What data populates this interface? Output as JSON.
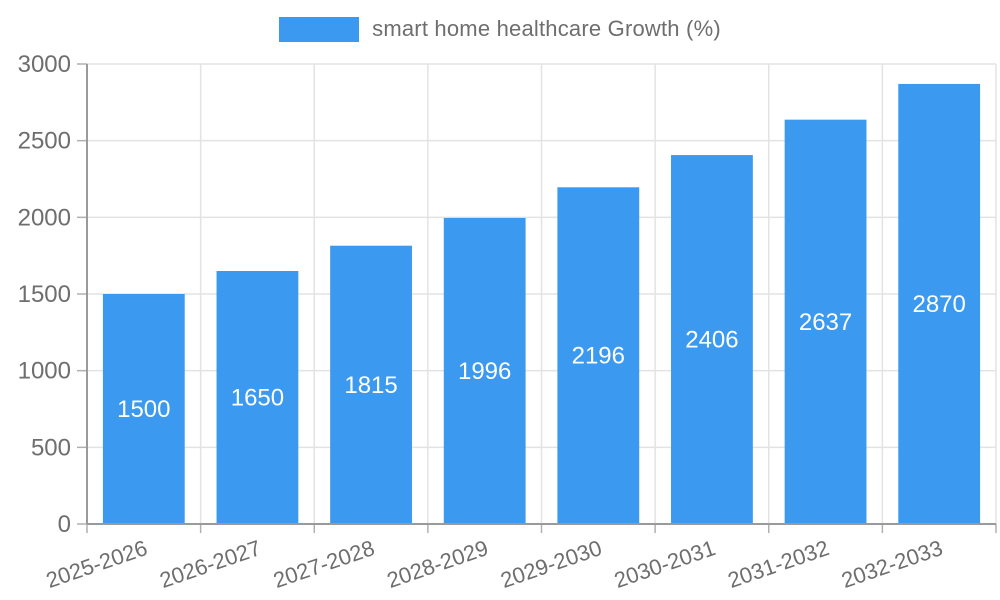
{
  "chart_data": {
    "type": "bar",
    "title": "smart home healthcare Growth (%)",
    "legend": {
      "label": "smart home healthcare Growth (%)",
      "position": "top-center"
    },
    "categories": [
      "2025-2026",
      "2026-2027",
      "2027-2028",
      "2028-2029",
      "2029-2030",
      "2030-2031",
      "2031-2032",
      "2032-2033"
    ],
    "values": [
      1500,
      1650,
      1815,
      1996,
      2196,
      2406,
      2637,
      2870
    ],
    "xlabel": "",
    "ylabel": "",
    "ylim": [
      0,
      3000
    ],
    "yticks": [
      0,
      500,
      1000,
      1500,
      2000,
      2500,
      3000
    ],
    "grid": "on",
    "value_labels_position": "inside-center",
    "x_label_rotation_deg": -19,
    "colors": {
      "bar": "#3b99ef",
      "value_label": "#ffffff",
      "grid": "#e3e3e3",
      "tick": "#b0b0b0",
      "axis": "#9a9a9a",
      "text": "#6e6e6e",
      "background": "#ffffff"
    }
  }
}
